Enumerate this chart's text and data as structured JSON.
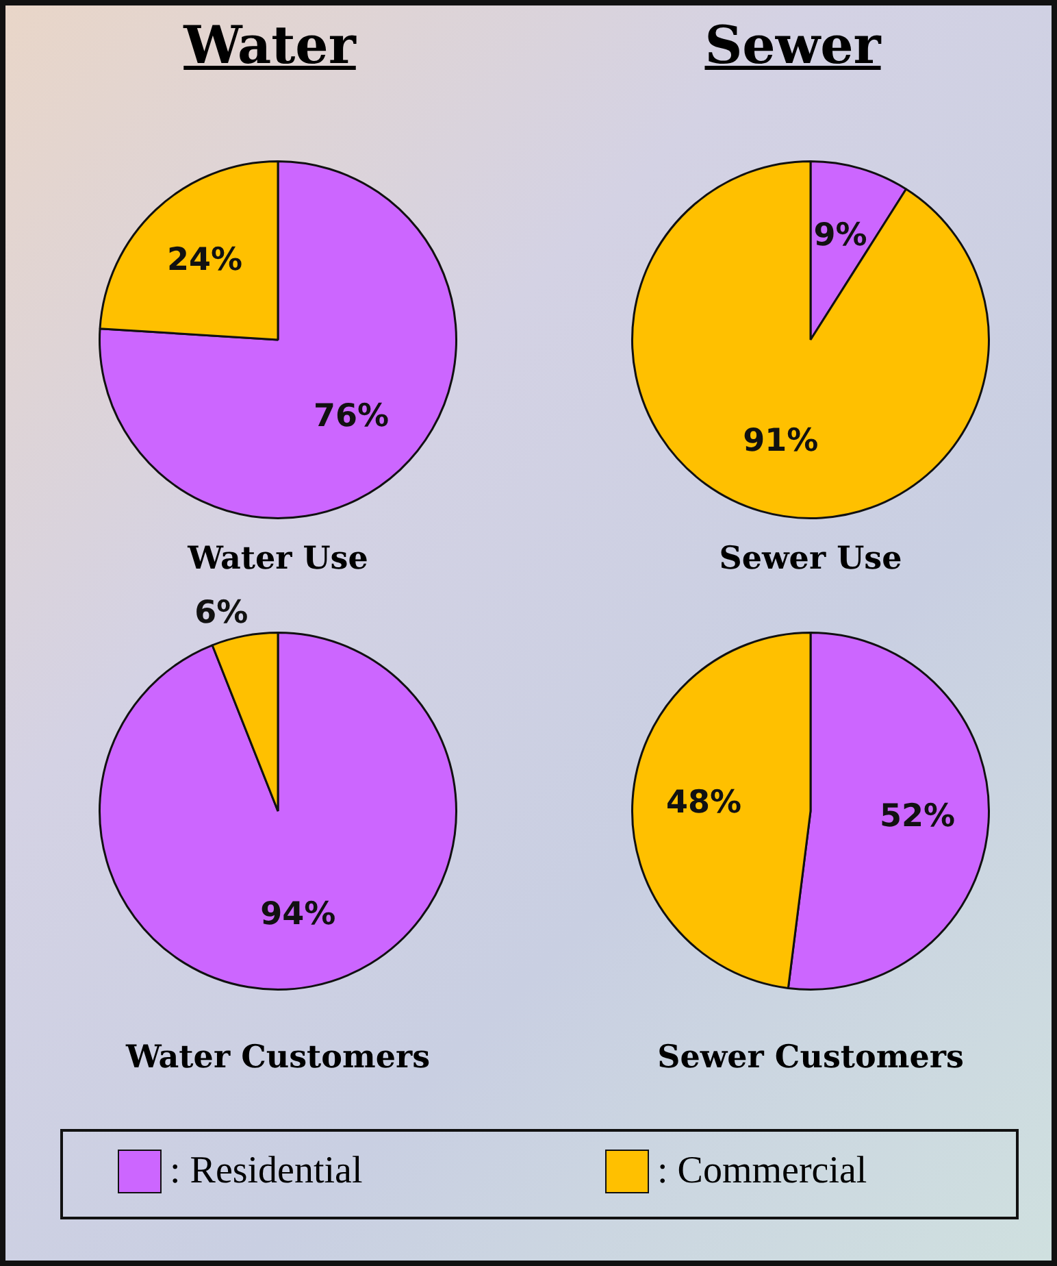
{
  "chart_data": [
    {
      "type": "pie",
      "title": "Water Use",
      "annotations": [
        "Water"
      ],
      "categories": [
        ": Residential",
        ": Commercial"
      ],
      "values": [
        76,
        24
      ],
      "colors": [
        "#cc66ff",
        "#ffc000"
      ],
      "value_labels": [
        "76%",
        "24%"
      ],
      "legend": "bottom"
    },
    {
      "type": "pie",
      "title": "Sewer Use",
      "annotations": [
        "Sewer"
      ],
      "categories": [
        null,
        null
      ],
      "values": [
        9,
        91
      ],
      "colors": [
        "#cc66ff",
        "#ffc000"
      ],
      "value_labels": [
        "9%",
        "91%"
      ]
    },
    {
      "type": "pie",
      "title": "Water Customers",
      "categories": [
        null,
        null
      ],
      "values": [
        94,
        6
      ],
      "colors": [
        "#cc66ff",
        "#ffc000"
      ],
      "value_labels": [
        "94%",
        "6%"
      ]
    },
    {
      "type": "pie",
      "title": "Sewer Customers",
      "categories": [
        null,
        null
      ],
      "values": [
        52,
        48
      ],
      "colors": [
        "#cc66ff",
        "#ffc000"
      ],
      "value_labels": [
        "52%",
        "48%"
      ]
    }
  ]
}
